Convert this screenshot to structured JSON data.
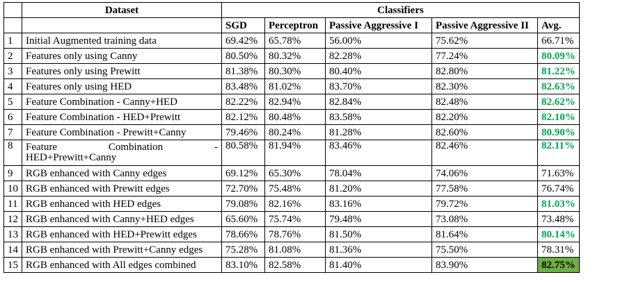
{
  "header": {
    "dataset": "Dataset",
    "classifiers": "Classifiers",
    "columns": [
      "SGD",
      "Perceptron",
      "Passive Aggressive I",
      "Passive Aggressive II",
      "Avg."
    ]
  },
  "colors": {
    "best_text": "#00a550",
    "top_fill": "#70ad47"
  },
  "rows": [
    {
      "no": "1",
      "dataset": "Initial Augmented training data",
      "sgd": "69.42%",
      "perceptron": "65.78%",
      "pa1": "56.00%",
      "pa2": "75.62%",
      "avg": "66.71%"
    },
    {
      "no": "2",
      "dataset": "Features only using Canny",
      "sgd": "80.50%",
      "perceptron": "80.32%",
      "pa1": "82.28%",
      "pa2": "77.24%",
      "avg": "80.09%"
    },
    {
      "no": "3",
      "dataset": "Features only using Prewitt",
      "sgd": "81.38%",
      "perceptron": "80.30%",
      "pa1": "80.40%",
      "pa2": "82.80%",
      "avg": "81.22%"
    },
    {
      "no": "4",
      "dataset": "Features only using HED",
      "sgd": "83.48%",
      "perceptron": "81.02%",
      "pa1": "83.70%",
      "pa2": "82.30%",
      "avg": "82.63%"
    },
    {
      "no": "5",
      "dataset": "Feature Combination - Canny+HED",
      "sgd": "82.22%",
      "perceptron": "82.94%",
      "pa1": "82.84%",
      "pa2": "82.48%",
      "avg": "82.62%"
    },
    {
      "no": "6",
      "dataset": "Feature Combination - HED+Prewitt",
      "sgd": "82.12%",
      "perceptron": "80.48%",
      "pa1": "83.58%",
      "pa2": "82.20%",
      "avg": "82.10%"
    },
    {
      "no": "7",
      "dataset": "Feature Combination - Prewitt+Canny",
      "sgd": "79.46%",
      "perceptron": "80.24%",
      "pa1": "81.28%",
      "pa2": "82.60%",
      "avg": "80.90%"
    },
    {
      "no": "8",
      "dataset_line1a": "Feature",
      "dataset_line1b": "Combination",
      "dataset_line1c": "-",
      "dataset_line2": "HED+Prewitt+Canny",
      "sgd": "80.58%",
      "perceptron": "81.94%",
      "pa1": "83.46%",
      "pa2": "82.46%",
      "avg": "82.11%"
    },
    {
      "no": "9",
      "dataset": "RGB enhanced with Canny edges",
      "sgd": "69.12%",
      "perceptron": "65.30%",
      "pa1": "78.04%",
      "pa2": "74.06%",
      "avg": "71.63%"
    },
    {
      "no": "10",
      "dataset": "RGB enhanced with Prewitt edges",
      "sgd": "72.70%",
      "perceptron": "75.48%",
      "pa1": "81.20%",
      "pa2": "77.58%",
      "avg": "76.74%"
    },
    {
      "no": "11",
      "dataset": "RGB enhanced with HED edges",
      "sgd": "79.08%",
      "perceptron": "82.16%",
      "pa1": "83.16%",
      "pa2": "79.72%",
      "avg": "81.03%"
    },
    {
      "no": "12",
      "dataset": "RGB enhanced with Canny+HED edges",
      "sgd": "65.60%",
      "perceptron": "75.74%",
      "pa1": "79.48%",
      "pa2": "73.08%",
      "avg": "73.48%"
    },
    {
      "no": "13",
      "dataset": "RGB enhanced with HED+Prewitt edges",
      "sgd": "78.66%",
      "perceptron": "78.76%",
      "pa1": "81.50%",
      "pa2": "81.64%",
      "avg": "80.14%"
    },
    {
      "no": "14",
      "dataset": "RGB enhanced with Prewitt+Canny edges",
      "sgd": "75.28%",
      "perceptron": "81.08%",
      "pa1": "81.36%",
      "pa2": "75.50%",
      "avg": "78.31%"
    },
    {
      "no": "15",
      "dataset": "RGB enhanced with All edges combined",
      "sgd": "83.10%",
      "perceptron": "82.58%",
      "pa1": "81.40%",
      "pa2": "83.90%",
      "avg": "82.75%"
    }
  ]
}
